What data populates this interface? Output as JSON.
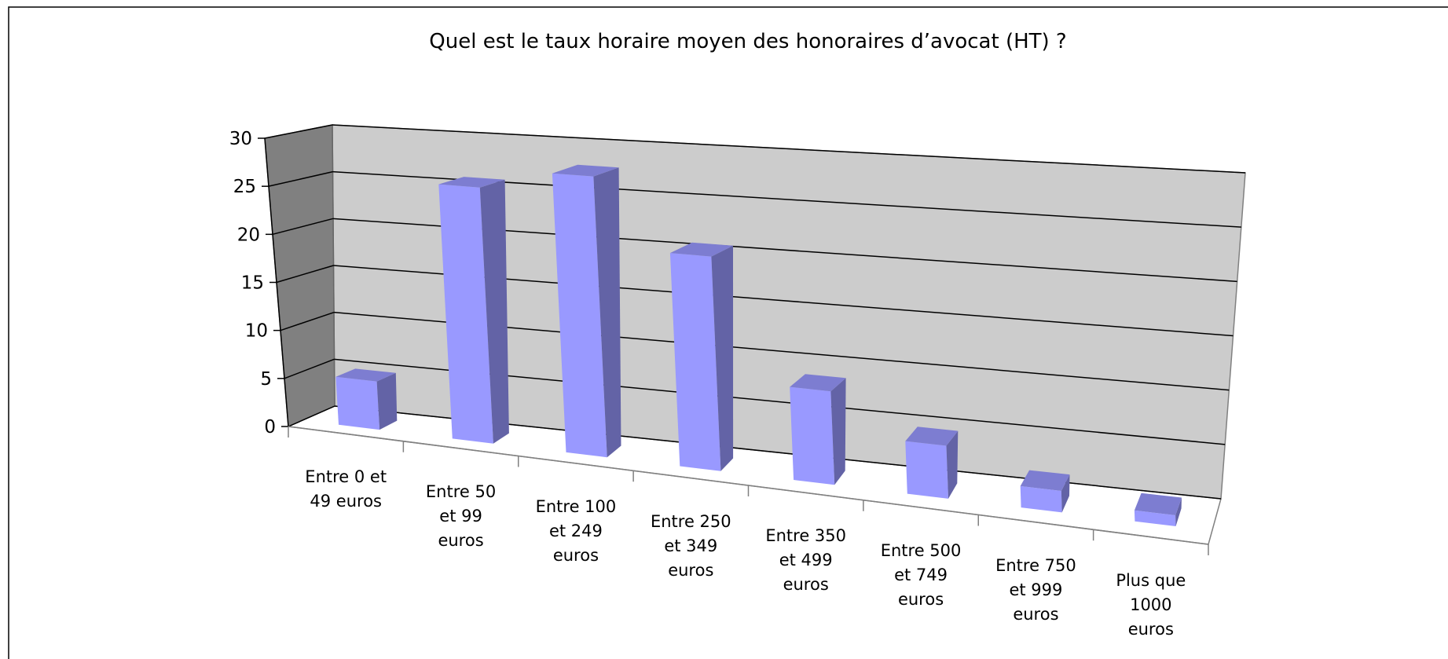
{
  "chart_data": {
    "type": "bar3d",
    "title": "Quel est le taux horaire moyen des honoraires d’avocat (HT) ?",
    "categories": [
      "Entre 0 et 49 euros",
      "Entre 50 et 99 euros",
      "Entre 100 et 249 euros",
      "Entre 250 et 349 euros",
      "Entre 350 et 499 euros",
      "Entre 500 et 749 euros",
      "Entre 750 et 999 euros",
      "Plus que 1000 euros"
    ],
    "values": [
      5,
      26,
      28,
      21,
      9,
      5,
      2,
      1
    ],
    "color": "#9999ff",
    "ylim": [
      0,
      30
    ],
    "yticks": [
      0,
      5,
      10,
      15,
      20,
      25,
      30
    ],
    "grid": true
  }
}
